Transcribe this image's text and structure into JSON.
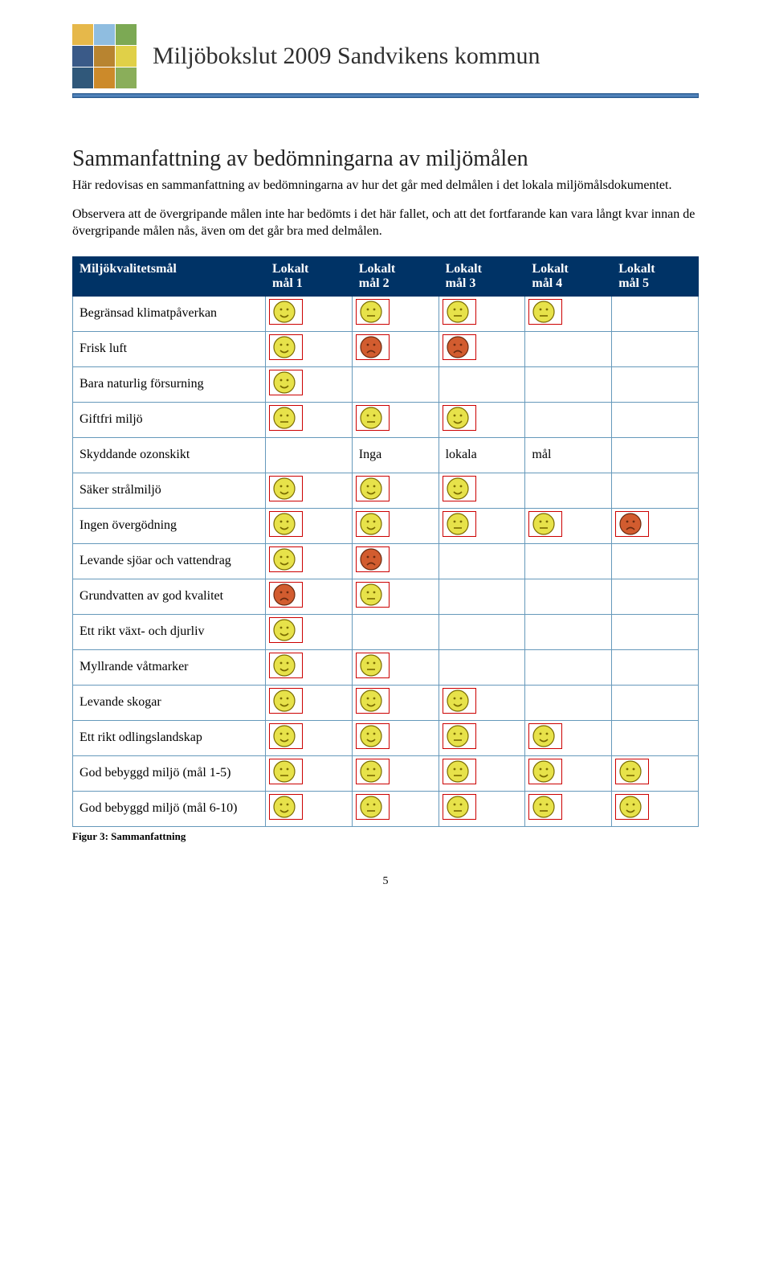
{
  "logo": {
    "tiles": [
      "#e6b84a",
      "#8fbde0",
      "#7ca954",
      "#3a5a88",
      "#b88430",
      "#e0d048",
      "#30587a",
      "#cc8a2a",
      "#8aae5a"
    ]
  },
  "header": {
    "title": "Miljöbokslut 2009 Sandvikens kommun"
  },
  "section": {
    "title": "Sammanfattning av bedömningarna av miljömålen",
    "para1": "Här redovisas en sammanfattning av bedömningarna av hur det går med delmålen i det lokala miljömålsdokumentet.",
    "para2": "Observera att de övergripande målen inte har bedömts i det här fallet, och att det fortfarande kan vara långt kvar innan de övergripande målen nås, även om det går bra med delmålen."
  },
  "table": {
    "headers": [
      "Miljökvalitetsmål",
      "Lokalt mål 1",
      "Lokalt mål 2",
      "Lokalt mål 3",
      "Lokalt mål 4",
      "Lokalt mål 5"
    ],
    "smileyColors": {
      "happy": "#e7e24a",
      "neutral": "#e7e24a",
      "sad": "#d25c2f",
      "stroke": "#7a6b00",
      "sadStroke": "#6a2a10"
    },
    "rows": [
      {
        "label": "Begränsad klimatpåverkan",
        "cells": [
          "happy",
          "neutral",
          "neutral",
          "neutral",
          ""
        ]
      },
      {
        "label": "Frisk luft",
        "cells": [
          "happy",
          "sad",
          "sad",
          "",
          ""
        ]
      },
      {
        "label": "Bara naturlig försurning",
        "cells": [
          "happy",
          "",
          "",
          "",
          ""
        ]
      },
      {
        "label": "Giftfri miljö",
        "cells": [
          "neutral",
          "neutral",
          "happy",
          "",
          ""
        ]
      },
      {
        "label": "Skyddande ozonskikt",
        "cells": [
          "",
          "text:Inga",
          "text:lokala",
          "text:mål",
          ""
        ]
      },
      {
        "label": "Säker strålmiljö",
        "cells": [
          "happy",
          "happy",
          "happy",
          "",
          ""
        ]
      },
      {
        "label": "Ingen övergödning",
        "cells": [
          "happy",
          "happy",
          "neutral",
          "neutral",
          "sad"
        ]
      },
      {
        "label": "Levande sjöar och vattendrag",
        "cells": [
          "happy",
          "sad",
          "",
          "",
          ""
        ]
      },
      {
        "label": "Grundvatten av god kvalitet",
        "cells": [
          "sad",
          "neutral",
          "",
          "",
          ""
        ]
      },
      {
        "label": "Ett rikt växt- och djurliv",
        "cells": [
          "happy",
          "",
          "",
          "",
          ""
        ]
      },
      {
        "label": "Myllrande våtmarker",
        "cells": [
          "happy",
          "neutral",
          "",
          "",
          ""
        ]
      },
      {
        "label": "Levande skogar",
        "cells": [
          "happy",
          "happy",
          "happy",
          "",
          ""
        ]
      },
      {
        "label": "Ett rikt odlingslandskap",
        "cells": [
          "happy",
          "happy",
          "neutral",
          "happy",
          ""
        ]
      },
      {
        "label": "God bebyggd miljö (mål 1-5)",
        "cells": [
          "neutral",
          "neutral",
          "neutral",
          "happy",
          "neutral"
        ]
      },
      {
        "label": "God bebyggd miljö (mål 6-10)",
        "cells": [
          "happy",
          "neutral",
          "neutral",
          "neutral",
          "happy"
        ]
      }
    ],
    "caption": "Figur 3: Sammanfattning"
  },
  "pageNumber": "5"
}
